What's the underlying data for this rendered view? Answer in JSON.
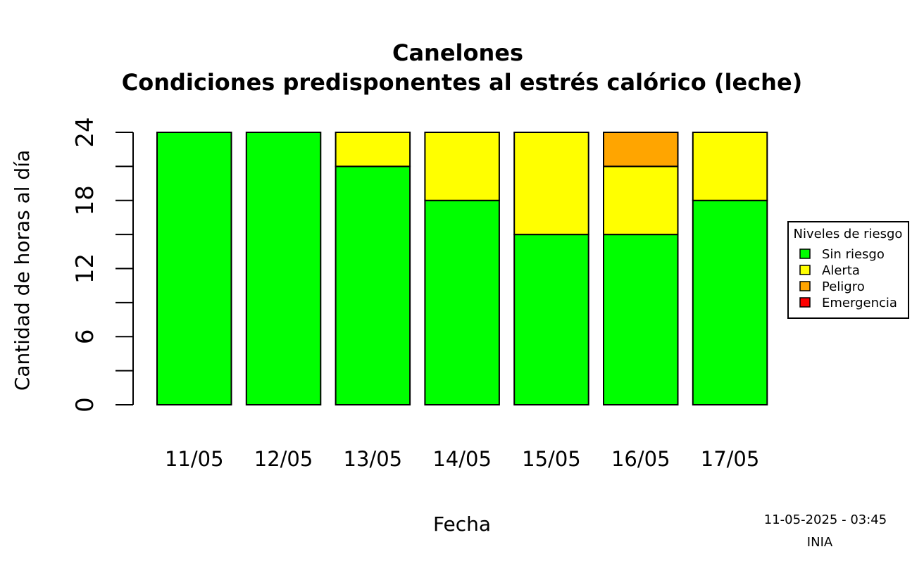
{
  "chart_data": {
    "type": "bar",
    "stacked": true,
    "title": "Canelones",
    "subtitle": "Condiciones predisponentes al estrés calórico (leche)",
    "xlabel": "Fecha",
    "ylabel": "Cantidad de horas al día",
    "ylim": [
      0,
      24
    ],
    "yticks": [
      0,
      6,
      12,
      18,
      24
    ],
    "categories": [
      "11/05",
      "12/05",
      "13/05",
      "14/05",
      "15/05",
      "16/05",
      "17/05"
    ],
    "series": [
      {
        "name": "Sin riesgo",
        "color": "#00ff00",
        "values": [
          24,
          24,
          21,
          18,
          15,
          15,
          18
        ]
      },
      {
        "name": "Alerta",
        "color": "#ffff00",
        "values": [
          0,
          0,
          3,
          6,
          9,
          6,
          6
        ]
      },
      {
        "name": "Peligro",
        "color": "#ffa500",
        "values": [
          0,
          0,
          0,
          0,
          0,
          3,
          0
        ]
      },
      {
        "name": "Emergencia",
        "color": "#ff0000",
        "values": [
          0,
          0,
          0,
          0,
          0,
          0,
          0
        ]
      }
    ],
    "legend": {
      "title": "Niveles de riesgo",
      "position": "right"
    },
    "grid": false
  },
  "footer": {
    "timestamp": "11-05-2025 - 03:45",
    "source": "INIA"
  }
}
